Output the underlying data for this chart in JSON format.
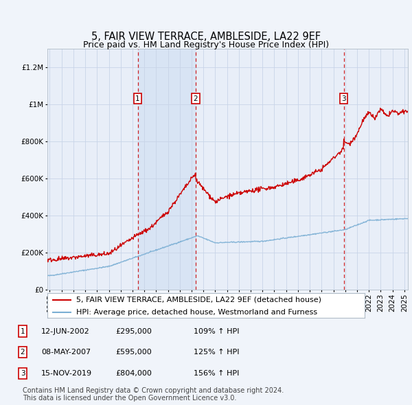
{
  "title": "5, FAIR VIEW TERRACE, AMBLESIDE, LA22 9EF",
  "subtitle": "Price paid vs. HM Land Registry's House Price Index (HPI)",
  "ylabel_ticks": [
    "£0",
    "£200K",
    "£400K",
    "£600K",
    "£800K",
    "£1M",
    "£1.2M"
  ],
  "ytick_values": [
    0,
    200000,
    400000,
    600000,
    800000,
    1000000,
    1200000
  ],
  "ylim": [
    0,
    1300000
  ],
  "xlim_start": 1994.8,
  "xlim_end": 2025.3,
  "sale_dates": [
    2002.44,
    2007.35,
    2019.87
  ],
  "sale_prices": [
    295000,
    595000,
    804000
  ],
  "sale_labels": [
    "1",
    "2",
    "3"
  ],
  "sale_label_dates": [
    "12-JUN-2002",
    "08-MAY-2007",
    "15-NOV-2019"
  ],
  "sale_label_prices": [
    "£295,000",
    "£595,000",
    "£804,000"
  ],
  "sale_label_hpi": [
    "109% ↑ HPI",
    "125% ↑ HPI",
    "156% ↑ HPI"
  ],
  "red_line_color": "#cc0000",
  "blue_line_color": "#7bafd4",
  "background_color": "#f0f4fa",
  "plot_bg_color": "#e8eef8",
  "shaded_bg_color": "#d8e4f4",
  "grid_color": "#c8d4e8",
  "dashed_line_color": "#cc0000",
  "legend_label_red": "5, FAIR VIEW TERRACE, AMBLESIDE, LA22 9EF (detached house)",
  "legend_label_blue": "HPI: Average price, detached house, Westmorland and Furness",
  "footer_text": "Contains HM Land Registry data © Crown copyright and database right 2024.\nThis data is licensed under the Open Government Licence v3.0.",
  "title_fontsize": 10.5,
  "subtitle_fontsize": 9,
  "tick_fontsize": 7.5,
  "legend_fontsize": 8,
  "footer_fontsize": 7
}
